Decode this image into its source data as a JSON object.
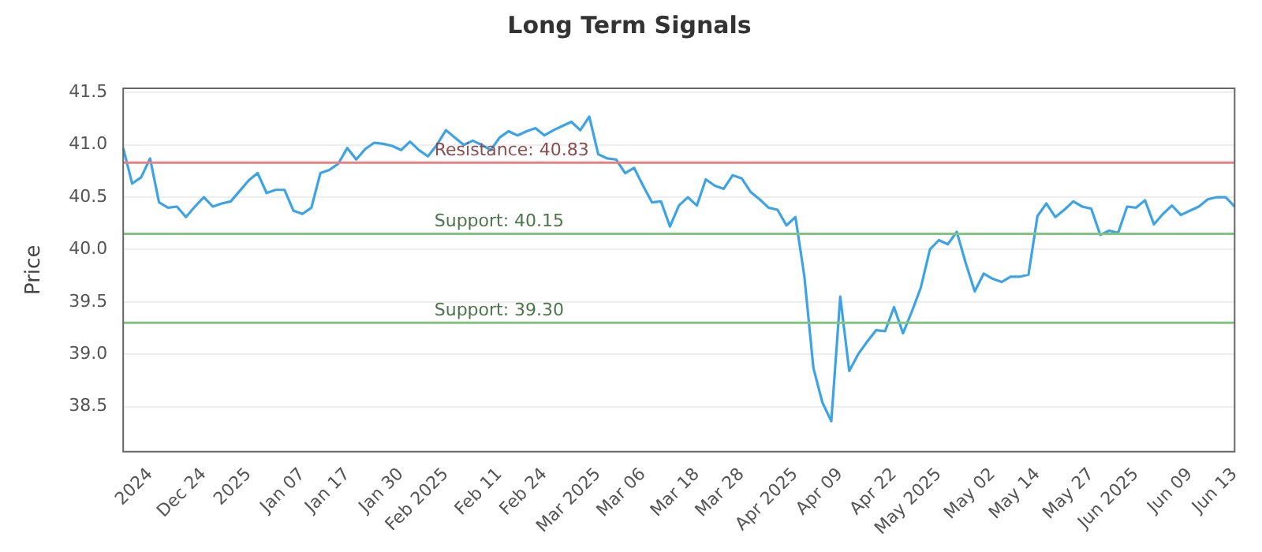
{
  "chart_data": {
    "type": "line",
    "title": "Long Term Signals",
    "ylabel": "Price",
    "categories": [
      null,
      null,
      null,
      "2024",
      null,
      null,
      null,
      null,
      null,
      "Dec 24",
      null,
      null,
      null,
      null,
      "2025",
      null,
      null,
      null,
      null,
      null,
      "Jan 07",
      null,
      null,
      null,
      null,
      "Jan 17",
      null,
      null,
      null,
      null,
      null,
      "Jan 30",
      null,
      null,
      null,
      null,
      "Feb 2025",
      null,
      null,
      null,
      null,
      null,
      "Feb 11",
      null,
      null,
      null,
      null,
      "Feb 24",
      null,
      null,
      null,
      null,
      null,
      "Mar 2025",
      null,
      null,
      null,
      null,
      "Mar 06",
      null,
      null,
      null,
      null,
      null,
      "Mar 18",
      null,
      null,
      null,
      null,
      "Mar 28",
      null,
      null,
      null,
      null,
      null,
      "Apr 2025",
      null,
      null,
      null,
      null,
      "Apr 09",
      null,
      null,
      null,
      null,
      null,
      "Apr 22",
      null,
      null,
      null,
      null,
      "May 2025",
      null,
      null,
      null,
      null,
      null,
      "May 02",
      null,
      null,
      null,
      null,
      "May 14",
      null,
      null,
      null,
      null,
      null,
      "May 27",
      null,
      null,
      null,
      null,
      "Jun 2025",
      null,
      null,
      null,
      null,
      null,
      "Jun 09",
      null,
      null,
      null,
      null,
      "Jun 13"
    ],
    "series": [
      {
        "color": "#3ca3e6",
        "values": [
          40.97,
          40.63,
          40.69,
          40.87,
          40.45,
          40.4,
          40.41,
          40.31,
          40.41,
          40.5,
          40.41,
          40.44,
          40.46,
          40.56,
          40.66,
          40.73,
          40.54,
          40.57,
          40.57,
          40.37,
          40.34,
          40.4,
          40.73,
          40.76,
          40.82,
          40.97,
          40.86,
          40.96,
          41.02,
          41.01,
          40.99,
          40.95,
          41.03,
          40.95,
          40.89,
          41.0,
          41.14,
          41.07,
          41.0,
          41.04,
          41.0,
          40.95,
          41.07,
          41.13,
          41.09,
          41.13,
          41.16,
          41.09,
          41.14,
          41.18,
          41.22,
          41.14,
          41.27,
          40.91,
          40.87,
          40.86,
          40.73,
          40.78,
          40.61,
          40.45,
          40.46,
          40.22,
          40.42,
          40.5,
          40.42,
          40.67,
          40.61,
          40.58,
          40.71,
          40.68,
          40.55,
          40.48,
          40.4,
          40.38,
          40.23,
          40.31,
          39.74,
          38.87,
          38.54,
          38.36,
          39.55,
          38.84,
          39.0,
          39.12,
          39.23,
          39.22,
          39.45,
          39.2,
          39.41,
          39.64,
          40.0,
          40.09,
          40.05,
          40.17,
          39.87,
          39.6,
          39.77,
          39.72,
          39.69,
          39.74,
          39.74,
          39.76,
          40.32,
          40.44,
          40.31,
          40.38,
          40.46,
          40.41,
          40.39,
          40.14,
          40.18,
          40.16,
          40.41,
          40.4,
          40.47,
          40.24,
          40.34,
          40.42,
          40.33,
          40.37,
          40.41,
          40.48,
          40.5,
          40.5,
          40.41
        ]
      }
    ],
    "ylim": [
      38.07,
      41.54
    ],
    "yticks": [
      38.5,
      {
        "value": 39,
        "label": "39.0"
      },
      39.5,
      {
        "value": 40,
        "label": "40.0"
      },
      40.5,
      {
        "value": 41,
        "label": "41.0"
      },
      41.5
    ],
    "ref_lines": [
      {
        "axis": "y",
        "value": 40.83,
        "label": "Resistance: 40.83",
        "color": "#e88080"
      },
      {
        "axis": "y",
        "value": 40.15,
        "label": "Support: 40.15",
        "color": "#80c480"
      },
      {
        "axis": "y",
        "value": 39.3,
        "label": "Support: 39.30",
        "color": "#80c480"
      }
    ],
    "grid": "y",
    "legend": false,
    "marker": "none",
    "line_style": "solid"
  }
}
